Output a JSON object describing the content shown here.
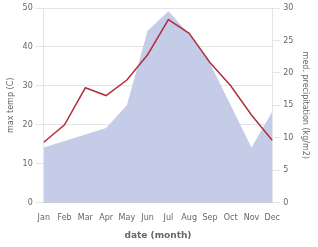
{
  "chart_data": {
    "type": "line",
    "categories": [
      "Jan",
      "Feb",
      "Mar",
      "Apr",
      "May",
      "Jun",
      "Jul",
      "Aug",
      "Sep",
      "Oct",
      "Nov",
      "Dec"
    ],
    "series": [
      {
        "type": "area",
        "axis": "y2",
        "color": "#c5cce8",
        "values": [
          8.5,
          9.5,
          10.5,
          11.5,
          15.0,
          26.5,
          29.5,
          26.0,
          21.5,
          15.0,
          8.5,
          14.0
        ]
      },
      {
        "type": "line",
        "color": "#b03040",
        "values": [
          15.5,
          20.0,
          29.5,
          27.5,
          31.5,
          38.0,
          47.0,
          43.5,
          36.0,
          30.0,
          22.5,
          16.0
        ]
      }
    ],
    "xlabel": "date (month)",
    "ylabel": "max temp (C)",
    "y2label": "med. precipitation (kg/m2)",
    "ylim": [
      0,
      50
    ],
    "yticks": [
      0,
      10,
      20,
      30,
      40,
      50
    ],
    "y2lim": [
      0,
      30
    ],
    "y2ticks": [
      0,
      5,
      10,
      15,
      20,
      25,
      30
    ],
    "grid": true
  }
}
